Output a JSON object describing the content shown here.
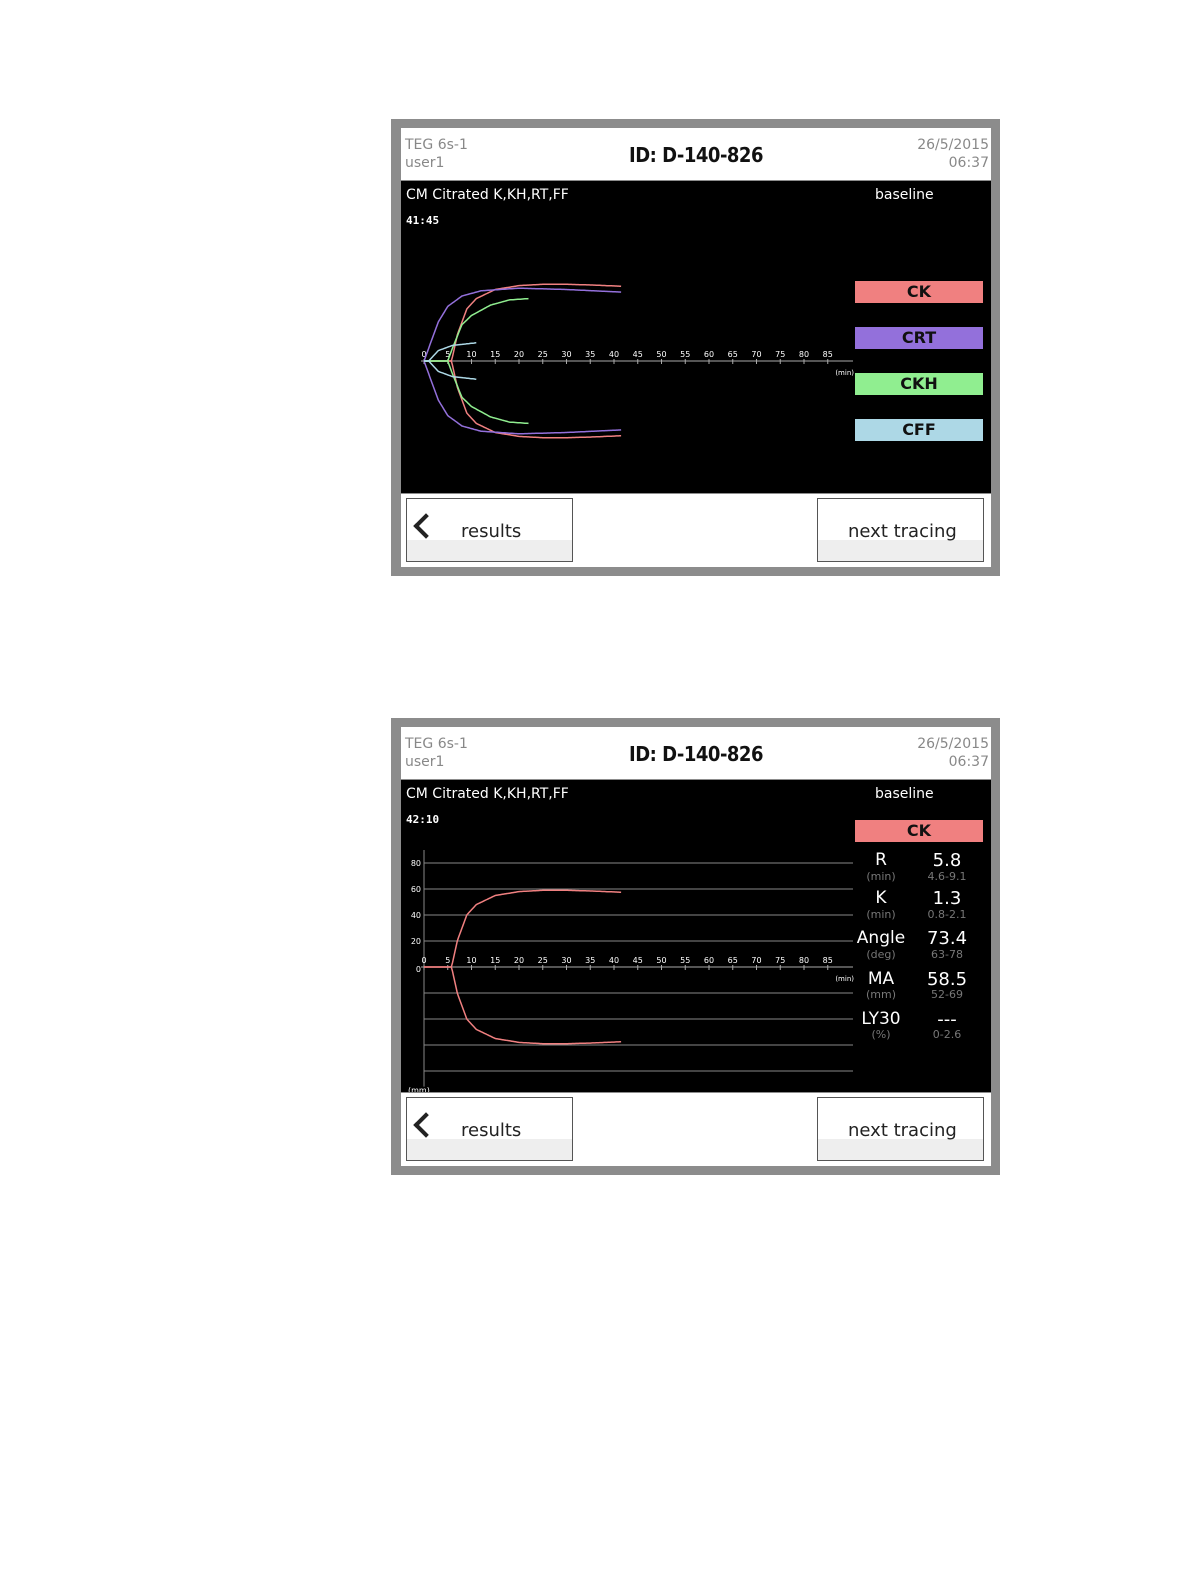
{
  "colors": {
    "CK": "#f08080",
    "CRT": "#9370db",
    "CKH": "#90ee90",
    "CFF": "#add8e6"
  },
  "panels": [
    {
      "device": "TEG 6s-1",
      "user": "user1",
      "id": "ID: D-140-826",
      "date": "26/5/2015",
      "time": "06:37",
      "test": "CM Citrated K,KH,RT,FF",
      "elapsed": "41:45",
      "state": "baseline",
      "legend": [
        "CK",
        "CRT",
        "CKH",
        "CFF"
      ],
      "back_label": "results",
      "next_label": "next tracing"
    },
    {
      "device": "TEG 6s-1",
      "user": "user1",
      "id": "ID: D-140-826",
      "date": "26/5/2015",
      "time": "06:37",
      "test": "CM Citrated K,KH,RT,FF",
      "elapsed": "42:10",
      "state": "baseline",
      "selected": "CK",
      "params": [
        {
          "name": "R",
          "unit": "(min)",
          "value": "5.8",
          "range": "4.6-9.1"
        },
        {
          "name": "K",
          "unit": "(min)",
          "value": "1.3",
          "range": "0.8-2.1"
        },
        {
          "name": "Angle",
          "unit": "(deg)",
          "value": "73.4",
          "range": "63-78"
        },
        {
          "name": "MA",
          "unit": "(mm)",
          "value": "58.5",
          "range": "52-69"
        },
        {
          "name": "LY30",
          "unit": "(%)",
          "value": "---",
          "range": "0-2.6"
        }
      ],
      "back_label": "results",
      "next_label": "next tracing"
    }
  ],
  "chart_data": [
    {
      "type": "line",
      "xlabel": "(min)",
      "xticks": [
        0,
        5,
        10,
        15,
        20,
        25,
        30,
        35,
        40,
        45,
        50,
        55,
        60,
        65,
        70,
        75,
        80,
        85
      ],
      "grid": false,
      "series": [
        {
          "name": "CK",
          "points": [
            [
              0,
              0
            ],
            [
              5.8,
              0
            ],
            [
              7,
              20
            ],
            [
              9,
              40
            ],
            [
              11,
              48
            ],
            [
              15,
              55
            ],
            [
              20,
              58
            ],
            [
              25,
              59
            ],
            [
              30,
              59
            ],
            [
              35,
              58.5
            ],
            [
              41.5,
              57.5
            ]
          ]
        },
        {
          "name": "CRT",
          "points": [
            [
              0,
              0
            ],
            [
              1,
              10
            ],
            [
              3,
              30
            ],
            [
              5,
              42
            ],
            [
              8,
              50
            ],
            [
              12,
              54
            ],
            [
              20,
              56
            ],
            [
              30,
              55
            ],
            [
              41.5,
              53
            ]
          ]
        },
        {
          "name": "CKH",
          "points": [
            [
              0,
              0
            ],
            [
              5,
              0
            ],
            [
              6,
              10
            ],
            [
              8,
              28
            ],
            [
              10,
              35
            ],
            [
              14,
              43
            ],
            [
              18,
              47
            ],
            [
              22,
              48
            ]
          ]
        },
        {
          "name": "CFF",
          "points": [
            [
              0,
              0
            ],
            [
              1,
              0
            ],
            [
              3,
              8
            ],
            [
              6,
              12
            ],
            [
              11,
              14
            ]
          ]
        }
      ]
    },
    {
      "type": "line",
      "xlabel": "(min)",
      "ylabel": "(mm)",
      "xticks": [
        0,
        5,
        10,
        15,
        20,
        25,
        30,
        35,
        40,
        45,
        50,
        55,
        60,
        65,
        70,
        75,
        80,
        85
      ],
      "yticks": [
        0,
        20,
        40,
        60,
        80
      ],
      "grid": true,
      "series": [
        {
          "name": "CK",
          "points": [
            [
              0,
              0
            ],
            [
              5.8,
              0
            ],
            [
              7,
              20
            ],
            [
              9,
              40
            ],
            [
              11,
              48
            ],
            [
              15,
              55
            ],
            [
              20,
              58
            ],
            [
              25,
              59
            ],
            [
              30,
              59
            ],
            [
              35,
              58.5
            ],
            [
              41.5,
              57.5
            ]
          ]
        }
      ]
    }
  ]
}
